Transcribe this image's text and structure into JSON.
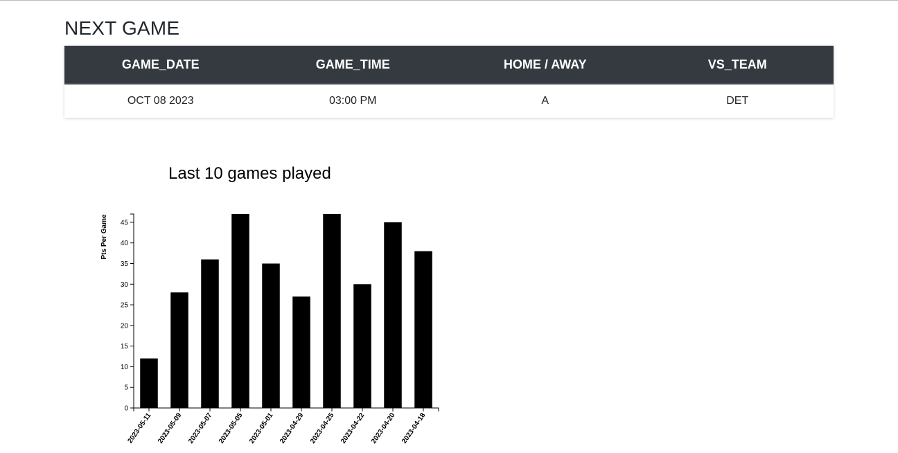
{
  "next_game": {
    "title": "NEXT GAME",
    "columns": [
      "GAME_DATE",
      "GAME_TIME",
      "HOME / AWAY",
      "VS_TEAM"
    ],
    "row": [
      "OCT 08 2023",
      "03:00 PM",
      "A",
      "DET"
    ]
  },
  "chart_data": {
    "type": "bar",
    "title": "Last 10 games played",
    "xlabel": "",
    "ylabel": "Pts Per Game",
    "categories": [
      "2023-05-11",
      "2023-05-09",
      "2023-05-07",
      "2023-05-05",
      "2023-05-01",
      "2023-04-29",
      "2023-04-25",
      "2023-04-22",
      "2023-04-20",
      "2023-04-18"
    ],
    "values": [
      12,
      28,
      36,
      47,
      35,
      27,
      47,
      30,
      45,
      38
    ],
    "ylim": [
      0,
      47
    ],
    "yticks": [
      0,
      5,
      10,
      15,
      20,
      25,
      30,
      35,
      40,
      45
    ],
    "grid": false,
    "bar_color": "#000000"
  }
}
